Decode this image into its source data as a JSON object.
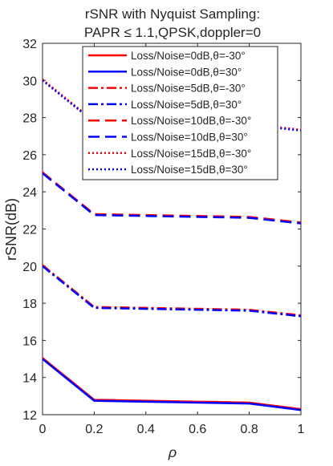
{
  "chart_data": {
    "type": "line",
    "title": [
      "rSNR with Nyquist Sampling:",
      "PAPR ≤ 1.1,QPSK,doppler=0"
    ],
    "xlabel": "ρ",
    "ylabel": "rSNR(dB)",
    "xlim": [
      0,
      1
    ],
    "ylim": [
      12,
      32
    ],
    "xticks": [
      0,
      0.2,
      0.4,
      0.6,
      0.8,
      1
    ],
    "xtick_labels": [
      "0",
      "0.2",
      "0.4",
      "0.6",
      "0.8",
      "1"
    ],
    "yticks": [
      12,
      14,
      16,
      18,
      20,
      22,
      24,
      26,
      28,
      30,
      32
    ],
    "ytick_labels": [
      "12",
      "14",
      "16",
      "18",
      "20",
      "22",
      "24",
      "26",
      "28",
      "30",
      "32"
    ],
    "grid": false,
    "legend_position": "top-right",
    "x": [
      0,
      0.2,
      0.8,
      1
    ],
    "series": [
      {
        "name": "Loss/Noise=0dB,θ=-30°",
        "color": "#ff0000",
        "style": "solid",
        "values": [
          15.05,
          12.8,
          12.65,
          12.3
        ]
      },
      {
        "name": "Loss/Noise=0dB,θ=30°",
        "color": "#0000ff",
        "style": "solid",
        "values": [
          15.0,
          12.75,
          12.6,
          12.25
        ]
      },
      {
        "name": "Loss/Noise=5dB,θ=-30°",
        "color": "#ff0000",
        "style": "dashdot",
        "values": [
          20.05,
          17.8,
          17.65,
          17.35
        ]
      },
      {
        "name": "Loss/Noise=5dB,θ=30°",
        "color": "#0000ff",
        "style": "dashdot",
        "values": [
          20.0,
          17.75,
          17.6,
          17.3
        ]
      },
      {
        "name": "Loss/Noise=10dB,θ=-30°",
        "color": "#ff0000",
        "style": "dashed",
        "values": [
          25.05,
          22.8,
          22.65,
          22.35
        ]
      },
      {
        "name": "Loss/Noise=10dB,θ=30°",
        "color": "#0000ff",
        "style": "dashed",
        "values": [
          25.0,
          22.75,
          22.6,
          22.3
        ]
      },
      {
        "name": "Loss/Noise=15dB,θ=-30°",
        "color": "#ff0000",
        "style": "dotted",
        "values": [
          30.05,
          27.8,
          27.65,
          27.35
        ]
      },
      {
        "name": "Loss/Noise=15dB,θ=30°",
        "color": "#0000ff",
        "style": "dotted",
        "values": [
          30.0,
          27.75,
          27.6,
          27.3
        ]
      }
    ]
  }
}
